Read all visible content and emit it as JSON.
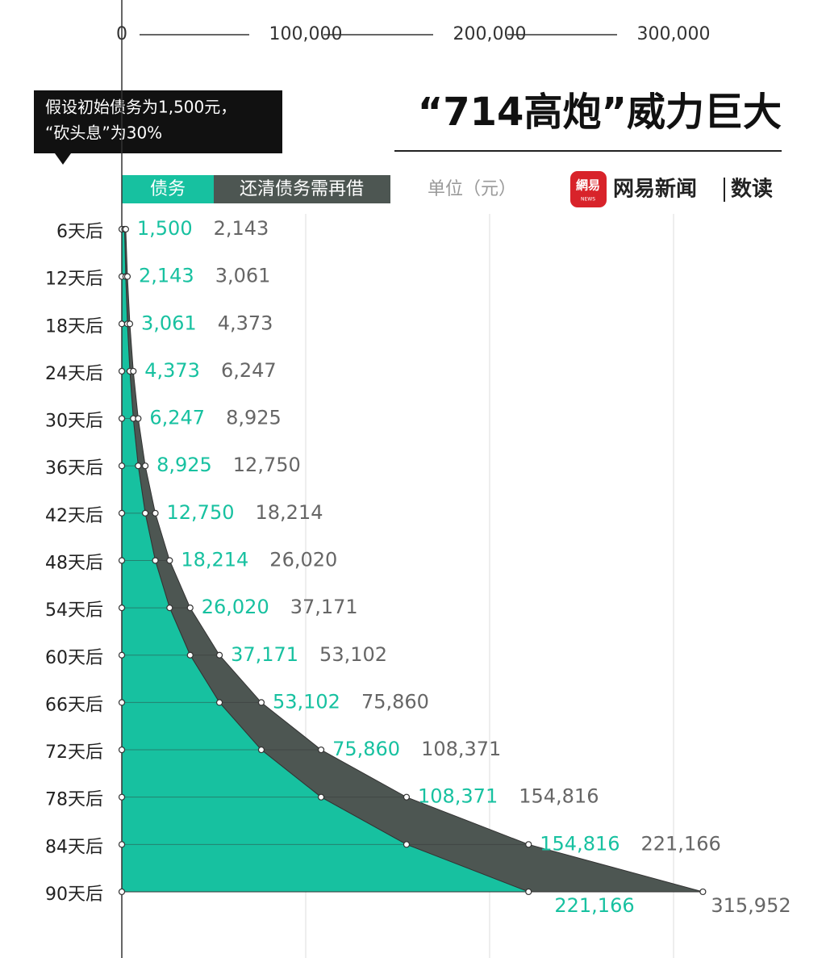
{
  "chart_data": {
    "type": "area",
    "title": "“714高炮”威力巨大",
    "annotation": [
      "假设初始债务为1,500元，",
      "“砍头息”为30%"
    ],
    "unit_label": "单位（元）",
    "logo_text": "網易",
    "logo_sub": "NEWS",
    "source": "网易新闻",
    "source_sub": "数读",
    "categories": [
      "6天后",
      "12天后",
      "18天后",
      "24天后",
      "30天后",
      "36天后",
      "42天后",
      "48天后",
      "54天后",
      "60天后",
      "66天后",
      "72天后",
      "78天后",
      "84天后",
      "90天后"
    ],
    "series": [
      {
        "name": "债务",
        "color": "#17c1a0",
        "values": [
          1500,
          2143,
          3061,
          4373,
          6247,
          8925,
          12750,
          18214,
          26020,
          37171,
          53102,
          75860,
          108371,
          154816,
          221166
        ],
        "value_labels": [
          "1,500",
          "2,143",
          "3,061",
          "4,373",
          "6,247",
          "8,925",
          "12,750",
          "18,214",
          "26,020",
          "37,171",
          "53,102",
          "75,860",
          "108,371",
          "154,816",
          "221,166"
        ]
      },
      {
        "name": "还清债务需再借",
        "color": "#4d5652",
        "values": [
          2143,
          3061,
          4373,
          6247,
          8925,
          12750,
          18214,
          26020,
          37171,
          53102,
          75860,
          108371,
          154816,
          221166,
          315952
        ],
        "value_labels": [
          "2,143",
          "3,061",
          "4,373",
          "6,247",
          "8,925",
          "12,750",
          "18,214",
          "26,020",
          "37,171",
          "53,102",
          "75,860",
          "108,371",
          "154,816",
          "221,166",
          "315,952"
        ]
      }
    ],
    "xlim": [
      0,
      350000
    ],
    "xticks": [
      0,
      {
        "value": 100000,
        "label": "100,000"
      },
      {
        "value": 200000,
        "label": "200,000"
      },
      {
        "value": 300000,
        "label": "300,000"
      }
    ],
    "grid": true
  }
}
